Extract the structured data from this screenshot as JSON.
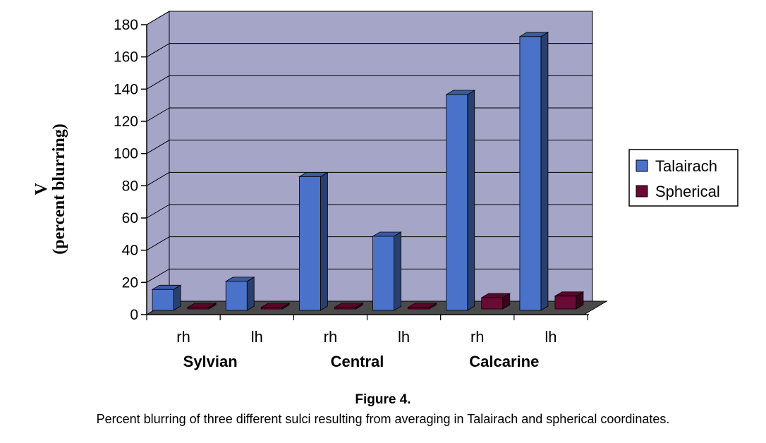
{
  "chart_data": {
    "type": "bar",
    "style": "3d-column",
    "ylabel_lines": [
      "V",
      "(percent blurring)"
    ],
    "ylim": [
      0,
      180
    ],
    "yticks": [
      0,
      20,
      40,
      60,
      80,
      100,
      120,
      140,
      160,
      180
    ],
    "grid": true,
    "legend_position": "right",
    "categories": [
      "rh",
      "lh",
      "rh",
      "lh",
      "rh",
      "lh"
    ],
    "groups": [
      {
        "label": "Sylvian",
        "categories": [
          "rh",
          "lh"
        ]
      },
      {
        "label": "Central",
        "categories": [
          "rh",
          "lh"
        ]
      },
      {
        "label": "Calcarine",
        "categories": [
          "rh",
          "lh"
        ]
      }
    ],
    "series": [
      {
        "name": "Talairach",
        "color": "#4a72c8",
        "values": [
          13,
          18,
          83,
          46,
          134,
          170
        ]
      },
      {
        "name": "Spherical",
        "color": "#6b0a35",
        "values": [
          1,
          1,
          1,
          1,
          7,
          8
        ]
      }
    ],
    "colors": {
      "wall": "#a5a5c8",
      "floor": "#4a4a4a",
      "gridline": "#000000"
    }
  },
  "caption": {
    "title": "Figure 4.",
    "text": "Percent blurring of three different sulci resulting from averaging in Talairach and spherical coordinates."
  }
}
